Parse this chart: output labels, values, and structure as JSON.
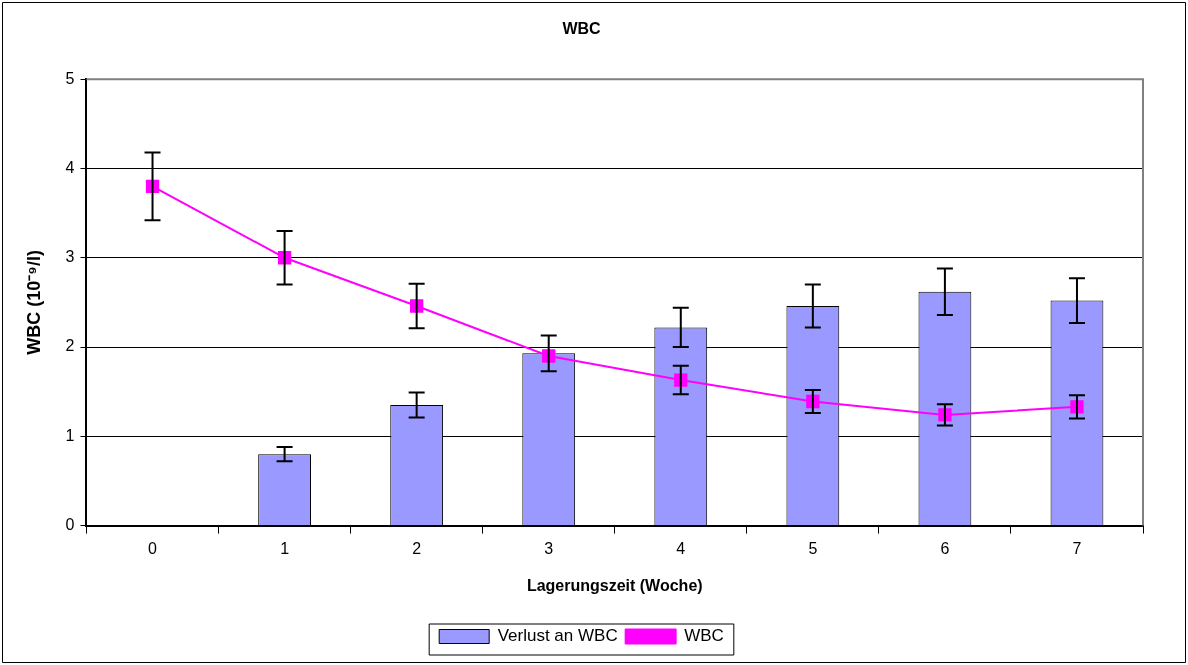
{
  "chart_data": {
    "type": "bar",
    "title": "WBC",
    "xlabel": "Lagerungszeit (Woche)",
    "ylabel": "WBC (10⁻⁹/l)",
    "categories": [
      "0",
      "1",
      "2",
      "3",
      "4",
      "5",
      "6",
      "7"
    ],
    "series": [
      {
        "name": "Verlust an WBC",
        "color": "#9999ff",
        "values": [
          0,
          0.8,
          1.35,
          1.93,
          2.22,
          2.46,
          2.62,
          2.52
        ],
        "errors": [
          null,
          0.08,
          0.14,
          0.2,
          0.22,
          0.24,
          0.26,
          0.25
        ]
      },
      {
        "name": "WBC",
        "type": "line",
        "color": "#ff00ff",
        "values": [
          3.8,
          3.0,
          2.46,
          1.9,
          1.63,
          1.39,
          1.24,
          1.33
        ],
        "errors": [
          0.38,
          0.3,
          0.25,
          null,
          0.16,
          0.13,
          0.12,
          0.13
        ],
        "marker": "square"
      }
    ],
    "ylim": [
      0,
      5
    ],
    "yticks": [
      0,
      1,
      2,
      3,
      4,
      5
    ],
    "grid": "y",
    "legend": "bottom"
  }
}
